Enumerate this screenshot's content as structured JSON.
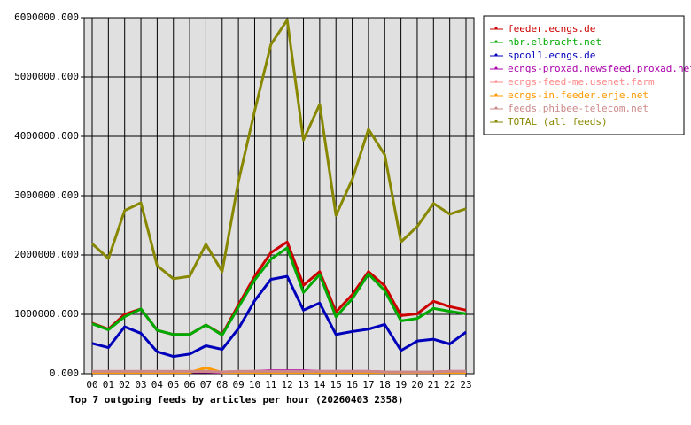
{
  "chart_data": {
    "type": "line",
    "title": "Top 7 outgoing feeds by articles per hour (20260403 2358)",
    "categories": [
      "00",
      "01",
      "02",
      "03",
      "04",
      "05",
      "06",
      "07",
      "08",
      "09",
      "10",
      "11",
      "12",
      "13",
      "14",
      "15",
      "16",
      "17",
      "18",
      "19",
      "20",
      "21",
      "22",
      "23"
    ],
    "series": [
      {
        "name": "feeder.ecngs.de",
        "color": "#cc0000",
        "values": [
          850000,
          750000,
          1000000,
          1090000,
          730000,
          660000,
          660000,
          820000,
          660000,
          1160000,
          1640000,
          2040000,
          2220000,
          1490000,
          1720000,
          1040000,
          1330000,
          1720000,
          1480000,
          980000,
          1010000,
          1220000,
          1130000,
          1070000
        ]
      },
      {
        "name": "nbr.elbracht.net",
        "color": "#00aa00",
        "values": [
          840000,
          740000,
          960000,
          1090000,
          730000,
          660000,
          660000,
          820000,
          650000,
          1120000,
          1580000,
          1930000,
          2120000,
          1370000,
          1670000,
          960000,
          1260000,
          1680000,
          1400000,
          890000,
          930000,
          1100000,
          1050000,
          1010000
        ]
      },
      {
        "name": "spool1.ecngs.de",
        "color": "#0000bb",
        "values": [
          510000,
          440000,
          790000,
          680000,
          370000,
          290000,
          330000,
          470000,
          410000,
          760000,
          1230000,
          1590000,
          1640000,
          1070000,
          1190000,
          660000,
          710000,
          750000,
          830000,
          390000,
          550000,
          580000,
          500000,
          700000
        ]
      },
      {
        "name": "ecngs-proxad.newsfeed.proxad.net",
        "color": "#aa00aa",
        "values": [
          30000,
          30000,
          30000,
          30000,
          30000,
          30000,
          30000,
          30000,
          20000,
          30000,
          40000,
          50000,
          50000,
          50000,
          40000,
          40000,
          40000,
          40000,
          30000,
          30000,
          30000,
          30000,
          40000,
          40000
        ]
      },
      {
        "name": "ecngs-feed-me.usenet.farm",
        "color": "#ff8888",
        "values": [
          40000,
          40000,
          40000,
          40000,
          40000,
          40000,
          40000,
          40000,
          30000,
          40000,
          40000,
          40000,
          40000,
          40000,
          40000,
          40000,
          40000,
          40000,
          30000,
          30000,
          30000,
          30000,
          40000,
          40000
        ]
      },
      {
        "name": "ecngs-in.feeder.erje.net",
        "color": "#ff9900",
        "values": [
          20000,
          20000,
          20000,
          20000,
          20000,
          20000,
          20000,
          100000,
          20000,
          20000,
          20000,
          20000,
          20000,
          20000,
          20000,
          20000,
          20000,
          20000,
          20000,
          20000,
          20000,
          20000,
          20000,
          20000
        ]
      },
      {
        "name": "feeds.phibee-telecom.net",
        "color": "#cc8888",
        "values": [
          40000,
          40000,
          40000,
          40000,
          40000,
          40000,
          40000,
          40000,
          30000,
          40000,
          40000,
          40000,
          40000,
          40000,
          40000,
          40000,
          40000,
          40000,
          30000,
          30000,
          30000,
          30000,
          40000,
          40000
        ]
      },
      {
        "name": "TOTAL (all feeds)",
        "color": "#888800",
        "values": [
          2190000,
          1940000,
          2750000,
          2880000,
          1820000,
          1600000,
          1640000,
          2180000,
          1720000,
          3240000,
          4430000,
          5550000,
          5960000,
          3940000,
          4540000,
          2670000,
          3270000,
          4120000,
          3690000,
          2220000,
          2480000,
          2870000,
          2690000,
          2780000
        ]
      }
    ],
    "ylim": [
      0,
      6000000
    ],
    "yticks": [
      {
        "value": 0,
        "label": "0.000"
      },
      {
        "value": 1000000,
        "label": "1000000.000"
      },
      {
        "value": 2000000,
        "label": "2000000.000"
      },
      {
        "value": 3000000,
        "label": "3000000.000"
      },
      {
        "value": 4000000,
        "label": "4000000.000"
      },
      {
        "value": 5000000,
        "label": "5000000.000"
      },
      {
        "value": 6000000,
        "label": "6000000.000"
      }
    ],
    "grid": true,
    "legend": "right"
  }
}
